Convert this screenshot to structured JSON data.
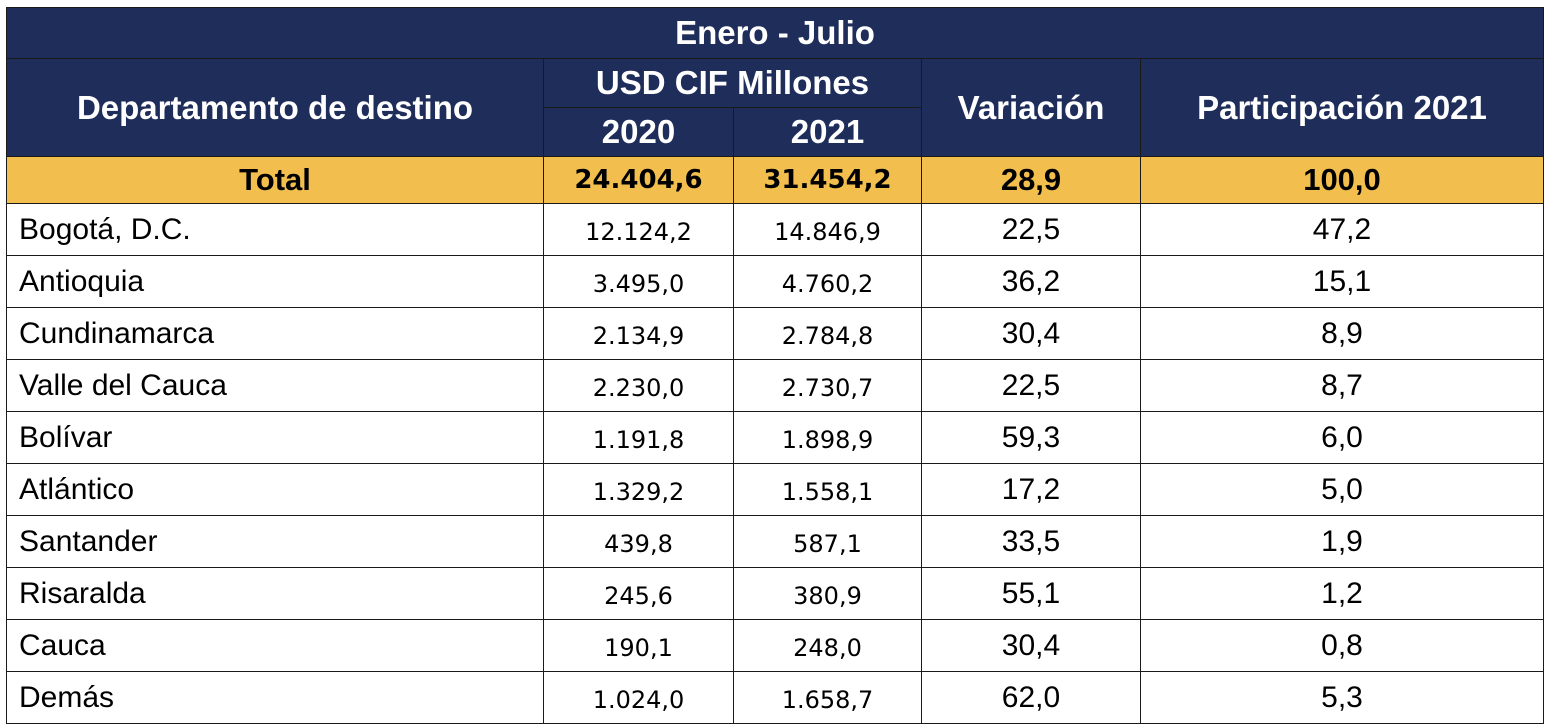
{
  "header": {
    "period": "Enero - Julio",
    "department_label": "Departamento de destino",
    "usd_label": "USD CIF Millones",
    "year_2020": "2020",
    "year_2021": "2021",
    "variation_label": "Variación",
    "share_label": "Participación 2021"
  },
  "total": {
    "label": "Total",
    "v2020": "24.404,6",
    "v2021": "31.454,2",
    "variation": "28,9",
    "share": "100,0"
  },
  "rows": [
    {
      "name": "Bogotá, D.C.",
      "v2020": "12.124,2",
      "v2021": "14.846,9",
      "variation": "22,5",
      "share": "47,2"
    },
    {
      "name": "Antioquia",
      "v2020": "3.495,0",
      "v2021": "4.760,2",
      "variation": "36,2",
      "share": "15,1"
    },
    {
      "name": "Cundinamarca",
      "v2020": "2.134,9",
      "v2021": "2.784,8",
      "variation": "30,4",
      "share": "8,9"
    },
    {
      "name": "Valle del Cauca",
      "v2020": "2.230,0",
      "v2021": "2.730,7",
      "variation": "22,5",
      "share": "8,7"
    },
    {
      "name": "Bolívar",
      "v2020": "1.191,8",
      "v2021": "1.898,9",
      "variation": "59,3",
      "share": "6,0"
    },
    {
      "name": "Atlántico",
      "v2020": "1.329,2",
      "v2021": "1.558,1",
      "variation": "17,2",
      "share": "5,0"
    },
    {
      "name": "Santander",
      "v2020": "439,8",
      "v2021": "587,1",
      "variation": "33,5",
      "share": "1,9"
    },
    {
      "name": "Risaralda",
      "v2020": "245,6",
      "v2021": "380,9",
      "variation": "55,1",
      "share": "1,2"
    },
    {
      "name": "Cauca",
      "v2020": "190,1",
      "v2021": "248,0",
      "variation": "30,4",
      "share": "0,8"
    },
    {
      "name": "Demás",
      "v2020": "1.024,0",
      "v2021": "1.658,7",
      "variation": "62,0",
      "share": "5,3"
    }
  ],
  "colors": {
    "header_bg": "#1f2d5a",
    "total_bg": "#f2bf4e"
  }
}
